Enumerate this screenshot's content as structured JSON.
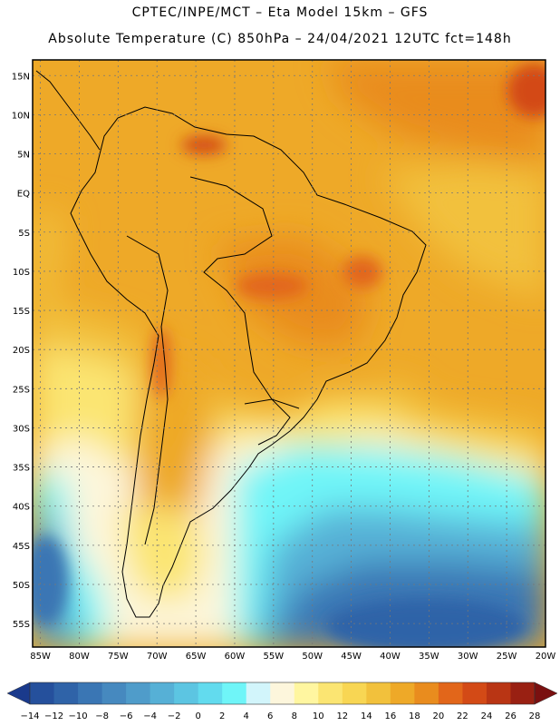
{
  "title": {
    "line1": "CPTEC/INPE/MCT –  Eta Model 15km – GFS",
    "line2": "Absolute Temperature (C) 850hPa – 24/04/2021 12UTC fct=148h"
  },
  "map": {
    "lat_labels": [
      "15N",
      "10N",
      "5N",
      "EQ",
      "5S",
      "10S",
      "15S",
      "20S",
      "25S",
      "30S",
      "35S",
      "40S",
      "45S",
      "50S",
      "55S"
    ],
    "lon_labels": [
      "85W",
      "80W",
      "75W",
      "70W",
      "65W",
      "60W",
      "55W",
      "50W",
      "45W",
      "40W",
      "35W",
      "30W",
      "25W",
      "20W"
    ],
    "lat_range": [
      17,
      -58
    ],
    "lon_range": [
      -86,
      -20
    ]
  },
  "colorbar": {
    "labels": [
      "-14",
      "-12",
      "-10",
      "-8",
      "-6",
      "-4",
      "-2",
      "0",
      "2",
      "4",
      "6",
      "8",
      "10",
      "12",
      "14",
      "16",
      "18",
      "20",
      "22",
      "24",
      "26",
      "28"
    ],
    "under_color": "#1a3a8c",
    "over_color": "#7a1010",
    "colors": [
      "#25509c",
      "#2f63a8",
      "#3a76b4",
      "#4689bf",
      "#4f9cca",
      "#56b0d6",
      "#5cc5e2",
      "#62dbee",
      "#6ff5f8",
      "#d2f5fb",
      "#fdf6dc",
      "#fff6a0",
      "#fbe572",
      "#f8d653",
      "#f2c13c",
      "#eea928",
      "#e98c1e",
      "#e2661a",
      "#d34a16",
      "#b93514",
      "#992012"
    ]
  }
}
